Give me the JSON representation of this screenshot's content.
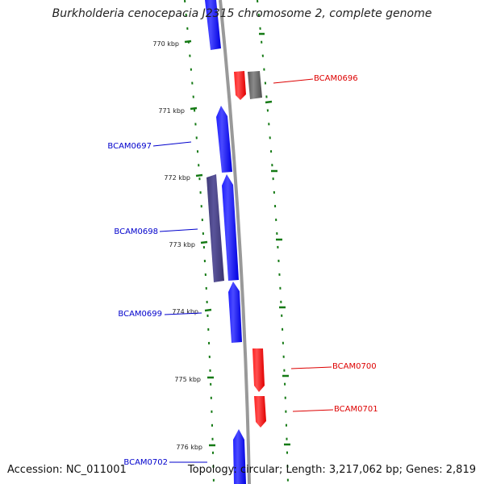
{
  "title": "Burkholderia cenocepacia J2315 chromosome 2, complete genome",
  "accession": "Accession: NC_011001",
  "summary": "Topology: circular; Length: 3,217,062 bp; Genes: 2,819",
  "colors": {
    "forward": "#0000ff",
    "reverse": "#ff0000",
    "overlap": "#4b4488",
    "other": "#666666",
    "ticks": "#157a15",
    "backbone": "#999999"
  },
  "ticks": [
    {
      "kbp": 770,
      "label": "770 kbp"
    },
    {
      "kbp": 771,
      "label": "771 kbp"
    },
    {
      "kbp": 772,
      "label": "772 kbp"
    },
    {
      "kbp": 773,
      "label": "773 kbp"
    },
    {
      "kbp": 774,
      "label": "774 kbp"
    },
    {
      "kbp": 775,
      "label": "775 kbp"
    },
    {
      "kbp": 776,
      "label": "776 kbp"
    }
  ],
  "genes": [
    {
      "id": "BCAM0697",
      "label": "BCAM0697",
      "strand": "forward"
    },
    {
      "id": "BCAM0698",
      "label": "BCAM0698",
      "strand": "forward"
    },
    {
      "id": "BCAM0699",
      "label": "BCAM0699",
      "strand": "forward"
    },
    {
      "id": "BCAM0702",
      "label": "BCAM0702",
      "strand": "forward"
    },
    {
      "id": "BCAM0696",
      "label": "BCAM0696",
      "strand": "reverse"
    },
    {
      "id": "BCAM0700",
      "label": "BCAM0700",
      "strand": "reverse"
    },
    {
      "id": "BCAM0701",
      "label": "BCAM0701",
      "strand": "reverse"
    }
  ]
}
